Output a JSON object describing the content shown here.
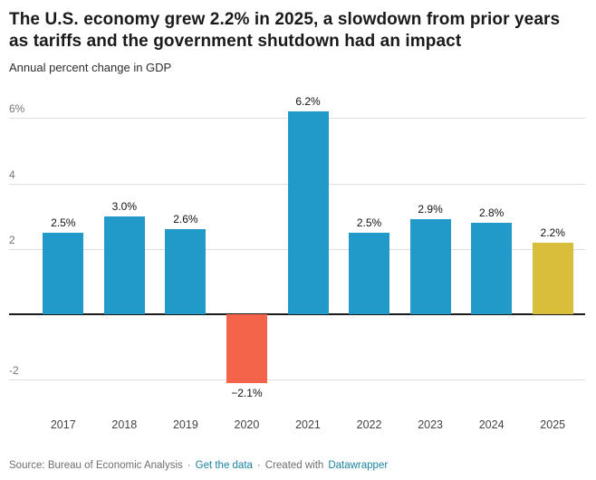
{
  "title": "The U.S. economy grew 2.2% in 2025, a slowdown from prior years as tariffs and the government shutdown had an impact",
  "subtitle": "Annual percent change in GDP",
  "footer": {
    "source": "Source: Bureau of Economic Analysis",
    "sep": "·",
    "get_data": "Get the data",
    "created_with": "Created with",
    "datawrapper": "Datawrapper"
  },
  "colors": {
    "bar_default": "#2199c9",
    "bar_negative": "#f4644a",
    "bar_highlight": "#d8be3b",
    "link": "#1d81a2",
    "gridline": "#dddddd",
    "zero_axis": "#1a1a1a"
  },
  "chart_data": {
    "type": "bar",
    "title": "The U.S. economy grew 2.2% in 2025, a slowdown from prior years as tariffs and the government shutdown had an impact",
    "subtitle": "Annual percent change in GDP",
    "xlabel": "",
    "ylabel": "Annual percent change in GDP",
    "categories": [
      "2017",
      "2018",
      "2019",
      "2020",
      "2021",
      "2022",
      "2023",
      "2024",
      "2025"
    ],
    "values": [
      2.5,
      3.0,
      2.6,
      -2.1,
      6.2,
      2.5,
      2.9,
      2.8,
      2.2
    ],
    "labels": [
      "2.5%",
      "3.0%",
      "2.6%",
      "−2.1%",
      "6.2%",
      "2.5%",
      "2.9%",
      "2.8%",
      "2.2%"
    ],
    "bar_colors": [
      "#2199c9",
      "#2199c9",
      "#2199c9",
      "#f4644a",
      "#2199c9",
      "#2199c9",
      "#2199c9",
      "#2199c9",
      "#d8be3b"
    ],
    "ylim": [
      -2.85,
      6.9
    ],
    "yticks": [
      {
        "value": -2,
        "label": "-2"
      },
      {
        "value": 0,
        "label": ""
      },
      {
        "value": 2,
        "label": "2"
      },
      {
        "value": 4,
        "label": "4"
      },
      {
        "value": 6,
        "label": "6%"
      }
    ],
    "grid": true,
    "legend": "none"
  }
}
